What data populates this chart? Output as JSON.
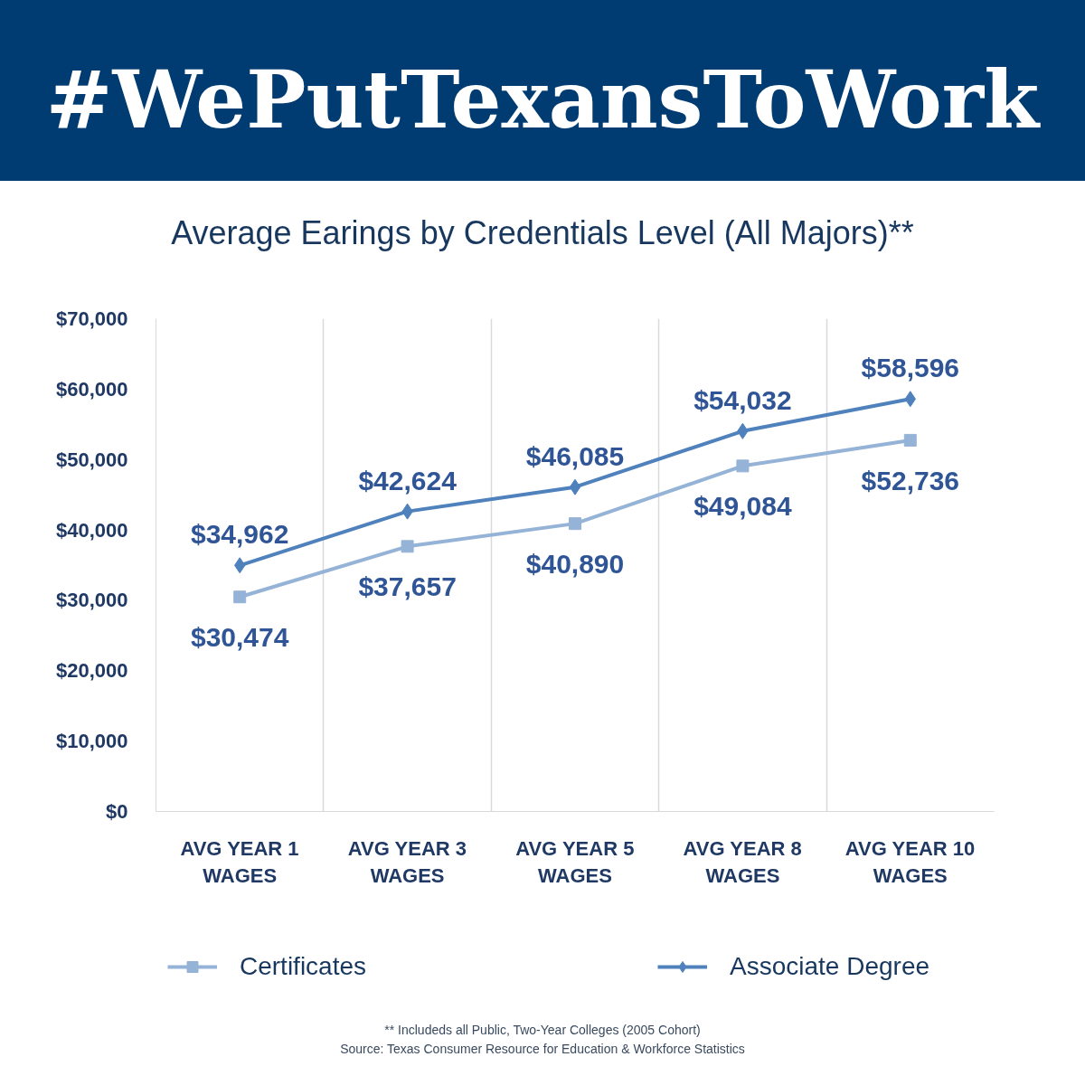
{
  "chart_data": {
    "type": "line",
    "title": "#WePutTexansToWork",
    "subtitle": "Average Earings by Credentials Level (All Majors)**",
    "categories": [
      "AVG YEAR 1 WAGES",
      "AVG YEAR 3 WAGES",
      "AVG YEAR 5 WAGES",
      "AVG YEAR 8 WAGES",
      "AVG YEAR 10 WAGES"
    ],
    "series": [
      {
        "name": "Certificates",
        "color": "#95b3d7",
        "marker": "square",
        "values": [
          30474,
          37657,
          40890,
          49084,
          52736
        ],
        "value_labels": [
          "$30,474",
          "$37,657",
          "$40,890",
          "$49,084",
          "$52,736"
        ]
      },
      {
        "name": "Associate Degree",
        "color": "#4f81bd",
        "marker": "diamond",
        "values": [
          34962,
          42624,
          46085,
          54032,
          58596
        ],
        "value_labels": [
          "$34,962",
          "$42,624",
          "$46,085",
          "$54,032",
          "$58,596"
        ]
      }
    ],
    "ylim": [
      0,
      70000
    ],
    "yticks": [
      {
        "value": 0,
        "label": "$0"
      },
      {
        "value": 10000,
        "label": "$10,000"
      },
      {
        "value": 20000,
        "label": "$20,000"
      },
      {
        "value": 30000,
        "label": "$30,000"
      },
      {
        "value": 40000,
        "label": "$40,000"
      },
      {
        "value": 50000,
        "label": "$50,000"
      },
      {
        "value": 60000,
        "label": "$60,000"
      },
      {
        "value": 70000,
        "label": "$70,000"
      }
    ],
    "grid": "x",
    "legend": "bottom",
    "line_style": "solid",
    "annotations": [
      "** Includeds all Public, Two-Year Colleges (2005 Cohort)",
      "Source: Texas Consumer Resource for Education & Workforce Statistics"
    ]
  }
}
